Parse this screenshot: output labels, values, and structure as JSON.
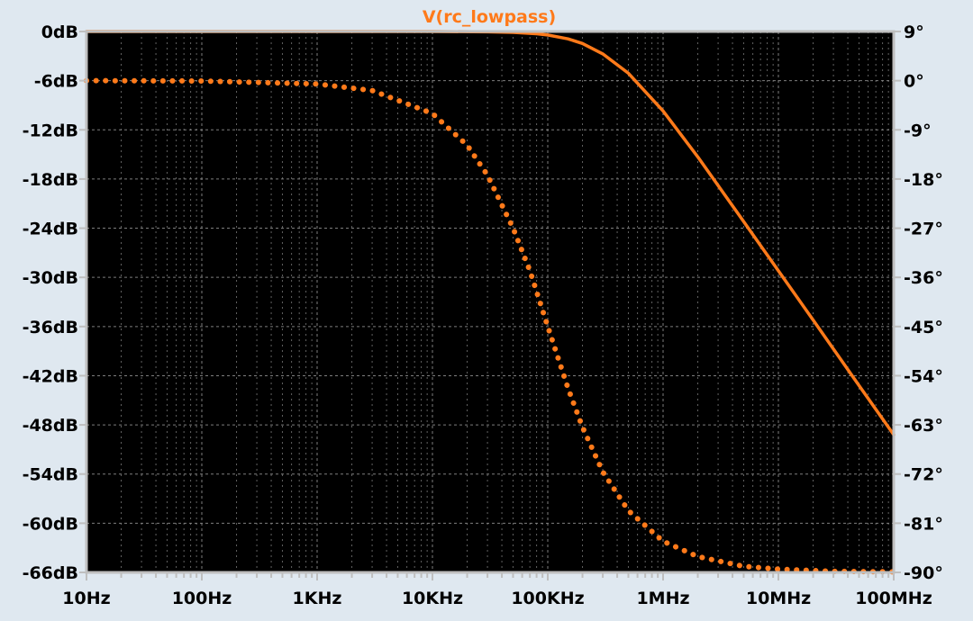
{
  "window": {
    "background": "#dfe8f0"
  },
  "colors": {
    "plot_background": "#000000",
    "axis_border": "#bfbfbf",
    "grid": "#8c8c8c",
    "trace": "#ff7a1a",
    "tick_text": "#000000"
  },
  "chart_data": {
    "type": "line",
    "title": "V(rc_lowpass)",
    "x_scale": "log",
    "xlim": [
      10,
      100000000
    ],
    "x_ticks": [
      {
        "value": 10,
        "label": "10Hz"
      },
      {
        "value": 100,
        "label": "100Hz"
      },
      {
        "value": 1000,
        "label": "1KHz"
      },
      {
        "value": 10000,
        "label": "10KHz"
      },
      {
        "value": 100000,
        "label": "100KHz"
      },
      {
        "value": 1000000,
        "label": "1MHz"
      },
      {
        "value": 10000000,
        "label": "10MHz"
      },
      {
        "value": 100000000,
        "label": "100MHz"
      }
    ],
    "y_left": {
      "unit": "dB",
      "ylim": [
        -66,
        0
      ],
      "ticks": [
        {
          "value": 0,
          "label": "0dB"
        },
        {
          "value": -6,
          "label": "-6dB"
        },
        {
          "value": -12,
          "label": "-12dB"
        },
        {
          "value": -18,
          "label": "-18dB"
        },
        {
          "value": -24,
          "label": "-24dB"
        },
        {
          "value": -30,
          "label": "-30dB"
        },
        {
          "value": -36,
          "label": "-36dB"
        },
        {
          "value": -42,
          "label": "-42dB"
        },
        {
          "value": -48,
          "label": "-48dB"
        },
        {
          "value": -54,
          "label": "-54dB"
        },
        {
          "value": -60,
          "label": "-60dB"
        },
        {
          "value": -66,
          "label": "-66dB"
        }
      ]
    },
    "y_right": {
      "unit": "degrees",
      "ylim": [
        -90,
        9
      ],
      "ticks": [
        {
          "value": 9,
          "label": "9°"
        },
        {
          "value": 0,
          "label": "0°"
        },
        {
          "value": -9,
          "label": "-9°"
        },
        {
          "value": -18,
          "label": "-18°"
        },
        {
          "value": -27,
          "label": "-27°"
        },
        {
          "value": -36,
          "label": "-36°"
        },
        {
          "value": -45,
          "label": "-45°"
        },
        {
          "value": -54,
          "label": "-54°"
        },
        {
          "value": -63,
          "label": "-63°"
        },
        {
          "value": -72,
          "label": "-72°"
        },
        {
          "value": -81,
          "label": "-81°"
        },
        {
          "value": -90,
          "label": "-90°"
        }
      ]
    },
    "grid": true,
    "series": [
      {
        "name": "V(rc_lowpass)",
        "quantity": "magnitude",
        "axis": "left",
        "style": "solid",
        "x": [
          10,
          100,
          1000,
          10000,
          30000,
          50000,
          80000,
          100000,
          150000,
          200000,
          300000,
          500000,
          1000000,
          2000000,
          5000000,
          10000000,
          20000000,
          50000000,
          100000000
        ],
        "y": [
          0,
          0,
          0,
          0,
          -0.04,
          -0.11,
          -0.28,
          -0.43,
          -0.9,
          -1.46,
          -2.73,
          -5.1,
          -9.7,
          -15.3,
          -23.2,
          -29.2,
          -35.2,
          -43.2,
          -49.2
        ]
      },
      {
        "name": "V(rc_lowpass)",
        "quantity": "phase",
        "axis": "right",
        "style": "dotted",
        "x": [
          10,
          100,
          1000,
          3000,
          10000,
          20000,
          30000,
          50000,
          70000,
          100000,
          150000,
          200000,
          300000,
          500000,
          1000000,
          2000000,
          5000000,
          10000000,
          30000000,
          100000000
        ],
        "y": [
          0,
          -0.06,
          -0.6,
          -1.8,
          -6,
          -11.8,
          -17.3,
          -27,
          -34.8,
          -45,
          -56.3,
          -63.4,
          -71.6,
          -78.7,
          -84.3,
          -87.1,
          -88.9,
          -89.4,
          -89.8,
          -89.9
        ]
      }
    ]
  }
}
